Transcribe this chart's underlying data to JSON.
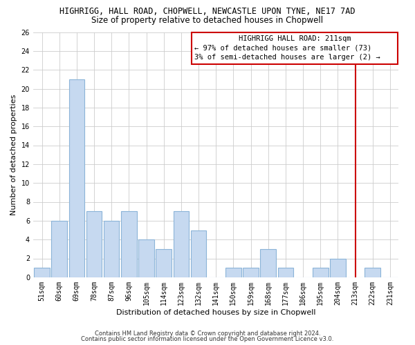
{
  "title": "HIGHRIGG, HALL ROAD, CHOPWELL, NEWCASTLE UPON TYNE, NE17 7AD",
  "subtitle": "Size of property relative to detached houses in Chopwell",
  "xlabel": "Distribution of detached houses by size in Chopwell",
  "ylabel": "Number of detached properties",
  "categories": [
    "51sqm",
    "60sqm",
    "69sqm",
    "78sqm",
    "87sqm",
    "96sqm",
    "105sqm",
    "114sqm",
    "123sqm",
    "132sqm",
    "141sqm",
    "150sqm",
    "159sqm",
    "168sqm",
    "177sqm",
    "186sqm",
    "195sqm",
    "204sqm",
    "213sqm",
    "222sqm",
    "231sqm"
  ],
  "values": [
    1,
    6,
    21,
    7,
    6,
    7,
    4,
    3,
    7,
    5,
    0,
    1,
    1,
    3,
    1,
    0,
    1,
    2,
    0,
    1,
    0
  ],
  "bar_color": "#c6d9f0",
  "bar_edge_color": "#8bb4d8",
  "grid_color": "#cccccc",
  "vline_x_index": 18,
  "vline_color": "#cc0000",
  "annotation_box_color": "#cc0000",
  "annotation_text_line1": "HIGHRIGG HALL ROAD: 211sqm",
  "annotation_text_line2": "← 97% of detached houses are smaller (73)",
  "annotation_text_line3": "3% of semi-detached houses are larger (2) →",
  "ylim": [
    0,
    26
  ],
  "yticks": [
    0,
    2,
    4,
    6,
    8,
    10,
    12,
    14,
    16,
    18,
    20,
    22,
    24,
    26
  ],
  "footer_line1": "Contains HM Land Registry data © Crown copyright and database right 2024.",
  "footer_line2": "Contains public sector information licensed under the Open Government Licence v3.0.",
  "background_color": "#ffffff",
  "title_fontsize": 8.5,
  "subtitle_fontsize": 8.5,
  "axis_label_fontsize": 8,
  "tick_fontsize": 7,
  "annotation_fontsize": 7.5,
  "footer_fontsize": 6
}
